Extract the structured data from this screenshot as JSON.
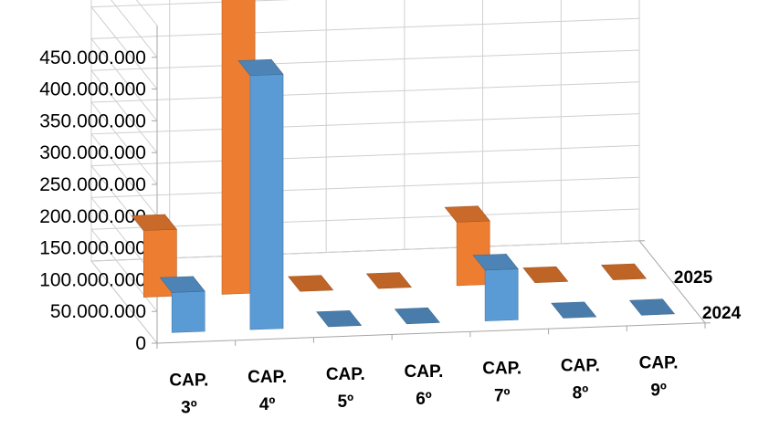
{
  "chart_data": {
    "type": "bar",
    "subtype": "3d-clustered-column",
    "categories": [
      [
        "CAP.",
        "3º"
      ],
      [
        "CAP.",
        "4º"
      ],
      [
        "CAP.",
        "5º"
      ],
      [
        "CAP.",
        "6º"
      ],
      [
        "CAP.",
        "7º"
      ],
      [
        "CAP.",
        "8º"
      ],
      [
        "CAP.",
        "9º"
      ]
    ],
    "series": [
      {
        "name": "2024",
        "color": "#5b9bd5",
        "values": [
          63000000,
          400000000,
          0,
          0,
          80000000,
          0,
          0
        ]
      },
      {
        "name": "2025",
        "color": "#ed7d31",
        "values": [
          105000000,
          470000000,
          0,
          0,
          100000000,
          0,
          0
        ]
      }
    ],
    "y_ticks": [
      "0",
      "50.000.000",
      "100.000.000",
      "150.000.000",
      "200.000.000",
      "250.000.000",
      "300.000.000",
      "350.000.000",
      "400.000.000",
      "450.000.000"
    ],
    "ylim": [
      0,
      450000000
    ],
    "grid": true,
    "legend": "depth-axis-labels"
  }
}
